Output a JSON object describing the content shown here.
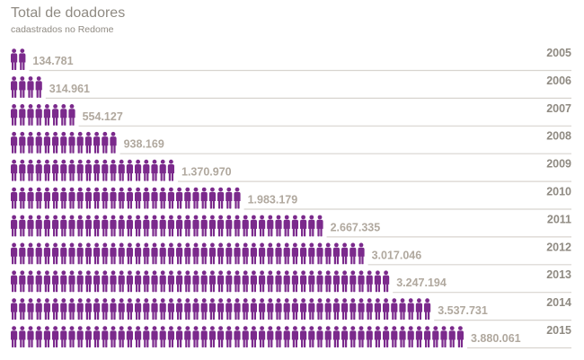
{
  "chart_data": {
    "type": "bar",
    "title": "Total de doadores",
    "subtitle": "cadastrados no Redome",
    "categories": [
      "2005",
      "2006",
      "2007",
      "2008",
      "2009",
      "2010",
      "2011",
      "2012",
      "2013",
      "2014",
      "2015"
    ],
    "values": [
      134781,
      314961,
      554127,
      938169,
      1370970,
      1983179,
      2667335,
      3017046,
      3247194,
      3537731,
      3880061
    ],
    "value_labels": [
      "134.781",
      "314.961",
      "554.127",
      "938.169",
      "1.370.970",
      "1.983.179",
      "2.667.335",
      "3.017.046",
      "3.247.194",
      "3.537.731",
      "3.880.061"
    ],
    "icon": "person-icon",
    "icon_color": "#7b2a8c",
    "line_color": "#d8d4cf",
    "value_color": "#b0a89e",
    "year_color": "#8f8a82"
  }
}
